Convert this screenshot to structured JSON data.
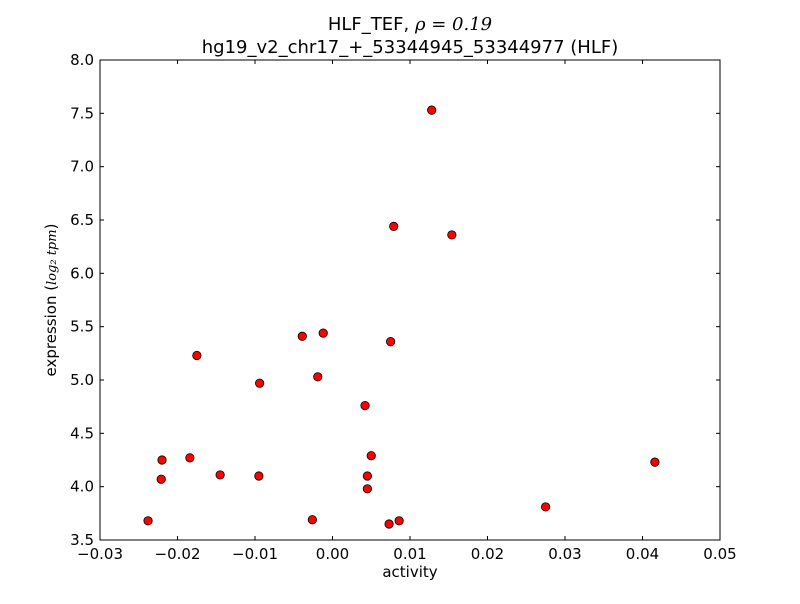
{
  "chart_data": {
    "type": "scatter",
    "title_line1_prefix": "HLF_TEF, ",
    "title_rho": "ρ = 0.19",
    "title_line2": "hg19_v2_chr17_+_53344945_53344977 (HLF)",
    "xlabel": "activity",
    "ylabel_prefix": "expression (",
    "ylabel_math": "log₂ tpm",
    "ylabel_suffix": ")",
    "xlim": [
      -0.03,
      0.05
    ],
    "ylim": [
      3.5,
      8.0
    ],
    "xticks": [
      -0.03,
      -0.02,
      -0.01,
      0.0,
      0.01,
      0.02,
      0.03,
      0.04,
      0.05
    ],
    "xtick_labels": [
      "−0.03",
      "−0.02",
      "−0.01",
      "0.00",
      "0.01",
      "0.02",
      "0.03",
      "0.04",
      "0.05"
    ],
    "yticks": [
      3.5,
      4.0,
      4.5,
      5.0,
      5.5,
      6.0,
      6.5,
      7.0,
      7.5,
      8.0
    ],
    "ytick_labels": [
      "3.5",
      "4.0",
      "4.5",
      "5.0",
      "5.5",
      "6.0",
      "6.5",
      "7.0",
      "7.5",
      "8.0"
    ],
    "marker_color": "#ff0000",
    "grid": false,
    "points": [
      {
        "x": -0.0238,
        "y": 3.68
      },
      {
        "x": -0.022,
        "y": 4.25
      },
      {
        "x": -0.0221,
        "y": 4.07
      },
      {
        "x": -0.0184,
        "y": 4.27
      },
      {
        "x": -0.0175,
        "y": 5.23
      },
      {
        "x": -0.0145,
        "y": 4.11
      },
      {
        "x": -0.0095,
        "y": 4.1
      },
      {
        "x": -0.0094,
        "y": 4.97
      },
      {
        "x": -0.0039,
        "y": 5.41
      },
      {
        "x": -0.0012,
        "y": 5.44
      },
      {
        "x": -0.0019,
        "y": 5.03
      },
      {
        "x": -0.0026,
        "y": 3.69
      },
      {
        "x": 0.0042,
        "y": 4.76
      },
      {
        "x": 0.005,
        "y": 4.29
      },
      {
        "x": 0.0045,
        "y": 4.1
      },
      {
        "x": 0.0045,
        "y": 3.98
      },
      {
        "x": 0.0073,
        "y": 3.65
      },
      {
        "x": 0.0086,
        "y": 3.68
      },
      {
        "x": 0.0075,
        "y": 5.36
      },
      {
        "x": 0.0079,
        "y": 6.44
      },
      {
        "x": 0.0128,
        "y": 7.53
      },
      {
        "x": 0.0154,
        "y": 6.36
      },
      {
        "x": 0.0275,
        "y": 3.81
      },
      {
        "x": 0.0416,
        "y": 4.23
      }
    ]
  }
}
